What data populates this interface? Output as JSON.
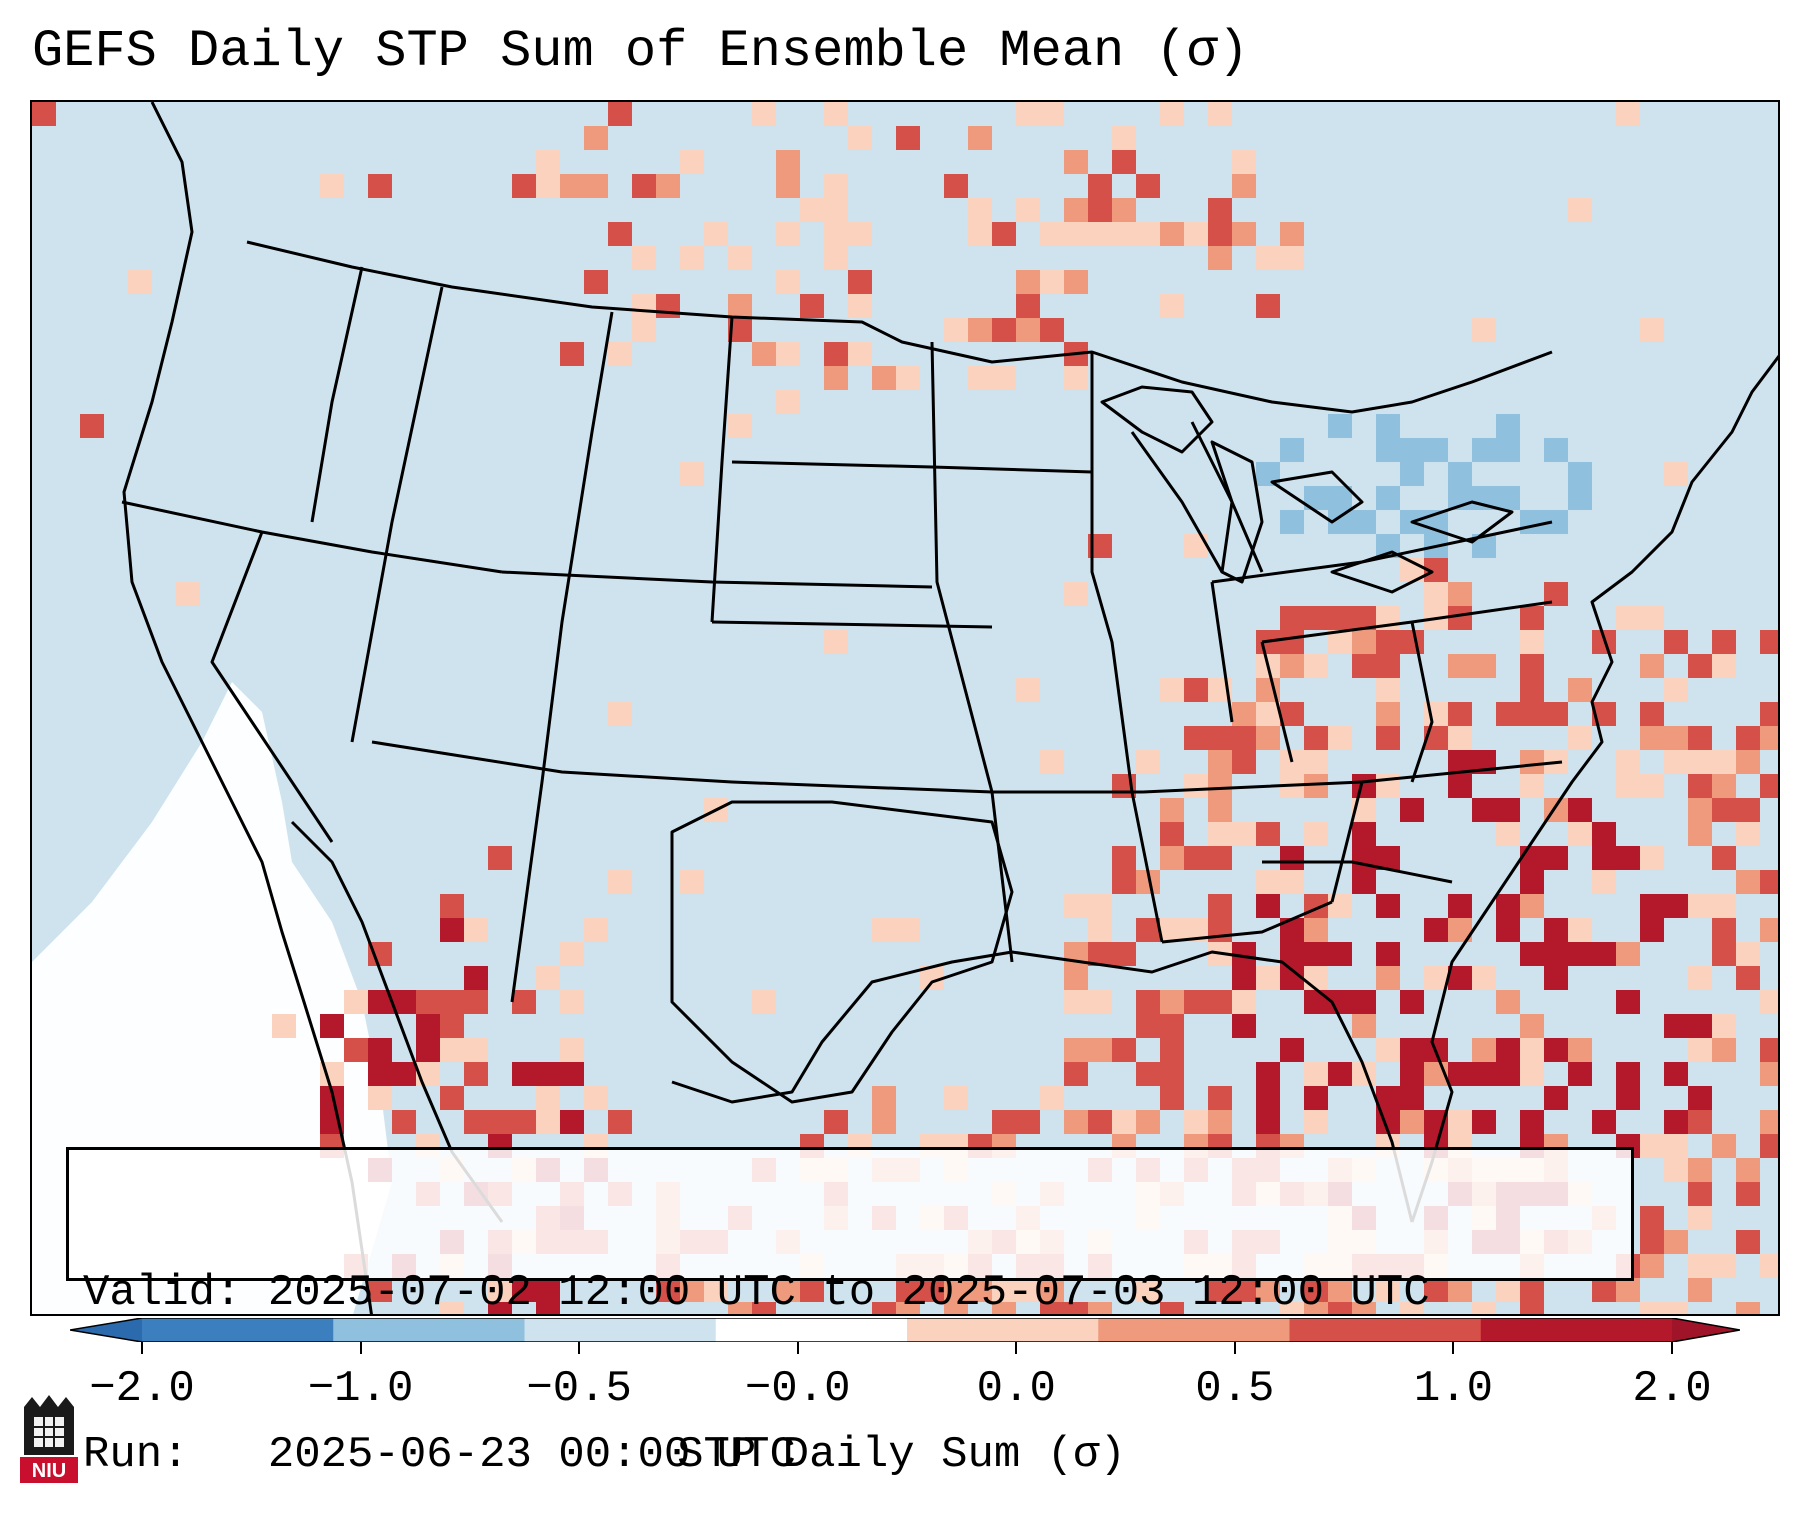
{
  "title": "GEFS Daily STP Sum of Ensemble Mean (σ)",
  "info": {
    "valid_label": "Valid:",
    "valid_value": "2025-07-02 12:00 UTC to 2025-07-03 12:00 UTC",
    "run_label": "Run:",
    "run_value": "2025-06-23 00:00 UTC"
  },
  "colorbar": {
    "label": "STP Daily Sum (σ)",
    "ticks": [
      "−2.0",
      "−1.0",
      "−0.5",
      "−0.0",
      "0.0",
      "0.5",
      "1.0",
      "2.0"
    ],
    "colors": [
      "#3b7fbf",
      "#8fc1de",
      "#cfe3ef",
      "#ffffff",
      "#fbd2bd",
      "#ef9a7d",
      "#d6504a",
      "#b3182b"
    ],
    "extend_low_color": "#2a6aad",
    "extend_high_color": "#a0142a"
  },
  "map": {
    "background_value_color": "#cfe3ef",
    "near_zero_color": "#ffffff",
    "boundary_color": "#000000",
    "ocean_positive_region": "Gulf of Mexico, Florida, western Atlantic",
    "negative_region": "Great Lakes / New York"
  },
  "logo": {
    "text": "NIU",
    "color": "#c8102e"
  }
}
